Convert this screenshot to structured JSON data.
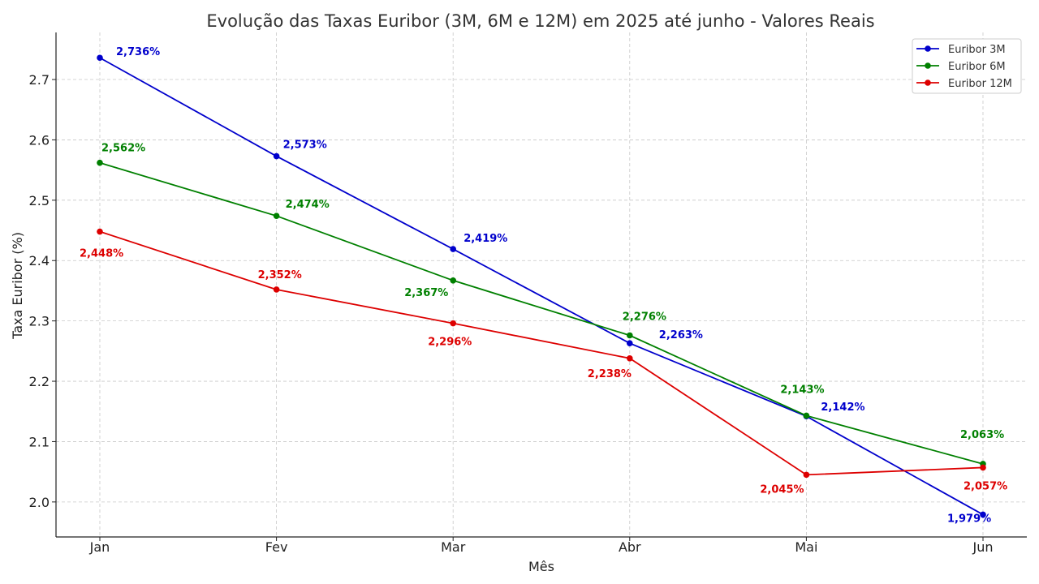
{
  "chart_data": {
    "type": "line",
    "title": "Evolução das Taxas Euribor (3M, 6M e 12M) em 2025 até junho - Valores Reais",
    "xlabel": "Mês",
    "ylabel": "Taxa Euribor (%)",
    "categories": [
      "Jan",
      "Fev",
      "Mar",
      "Abr",
      "Mai",
      "Jun"
    ],
    "ylim": [
      1.942,
      2.778
    ],
    "yticks": [
      2.0,
      2.1,
      2.2,
      2.3,
      2.4,
      2.5,
      2.6,
      2.7
    ],
    "ytick_labels": [
      "2.0",
      "2.1",
      "2.2",
      "2.3",
      "2.4",
      "2.5",
      "2.6",
      "2.7"
    ],
    "grid": true,
    "legend_position": "top-right",
    "series": [
      {
        "name": "Euribor 3M",
        "color": "#0000cc",
        "values": [
          2.736,
          2.573,
          2.419,
          2.263,
          2.142,
          1.979
        ],
        "labels": [
          "2,736%",
          "2,573%",
          "2,419%",
          "2,263%",
          "2,142%",
          "1,979%"
        ]
      },
      {
        "name": "Euribor 6M",
        "color": "#008000",
        "values": [
          2.562,
          2.474,
          2.367,
          2.276,
          2.143,
          2.063
        ],
        "labels": [
          "2,562%",
          "2,474%",
          "2,367%",
          "2,276%",
          "2,143%",
          "2,063%"
        ]
      },
      {
        "name": "Euribor 12M",
        "color": "#dd0000",
        "values": [
          2.448,
          2.352,
          2.296,
          2.238,
          2.045,
          2.057
        ],
        "labels": [
          "2,448%",
          "2,352%",
          "2,296%",
          "2,238%",
          "2,045%",
          "2,057%"
        ]
      }
    ]
  }
}
